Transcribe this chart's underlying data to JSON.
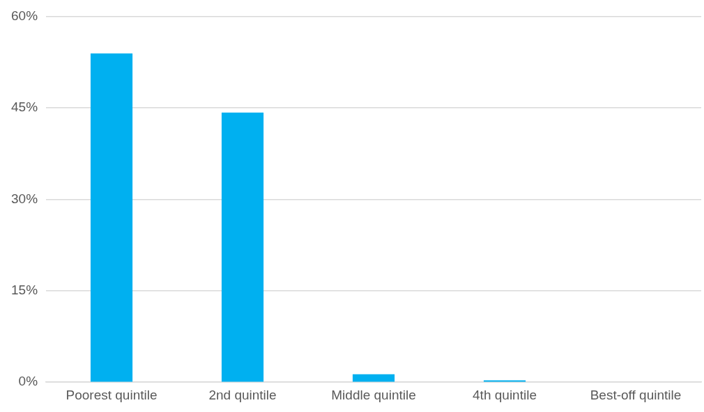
{
  "chart_data": {
    "type": "bar",
    "categories": [
      "Poorest quintile",
      "2nd quintile",
      "Middle quintile",
      "4th quintile",
      "Best-off quintile"
    ],
    "values": [
      53.9,
      44.2,
      1.3,
      0.3,
      0
    ],
    "color": "#00b0f0",
    "ylim": [
      0,
      60
    ],
    "yticks": [
      {
        "value": 0,
        "label": "0%"
      },
      {
        "value": 15,
        "label": "15%"
      },
      {
        "value": 30,
        "label": "30%"
      },
      {
        "value": 45,
        "label": "45%"
      },
      {
        "value": 60,
        "label": "60%"
      }
    ],
    "grid": "y",
    "legend": false
  }
}
